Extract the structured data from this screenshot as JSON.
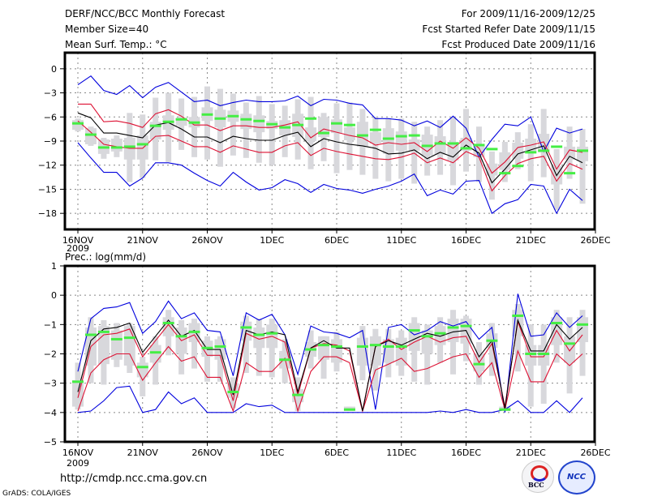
{
  "header": {
    "title": "DERF/NCC/BCC Monthly Forecast",
    "member_size": "Member Size=40",
    "variable_top": "Mean Surf. Temp.: °C",
    "period": "For 2009/11/16-2009/12/25",
    "started": "Fcst Started Refer Date 2009/11/15",
    "produced": "Fcst Produced Date 2009/11/16"
  },
  "footer": {
    "url": "http://cmdp.ncc.cma.gov.cn",
    "credit": "GrADS: COLA/IGES",
    "logos": [
      "BCC",
      "NCC"
    ]
  },
  "colors": {
    "max_min": "#0000dd",
    "spread": "#dd1133",
    "mean": "#000000",
    "median": "#44ee44",
    "box": "#d8d8dc"
  },
  "chart_data": [
    {
      "type": "line",
      "title": "Mean Surf. Temp.: °C",
      "xlabel": "",
      "ylabel": "°C",
      "x_start": "16NOV 2009",
      "x_ticks": [
        "16NOV",
        "21NOV",
        "26NOV",
        "1DEC",
        "6DEC",
        "11DEC",
        "16DEC",
        "21DEC",
        "26DEC"
      ],
      "x_tick_year": "2009",
      "ylim": [
        -20,
        2
      ],
      "y_ticks": [
        0,
        -3,
        -6,
        -9,
        -12,
        -15,
        -18
      ],
      "grid": true,
      "days": 40,
      "series": [
        {
          "name": "max",
          "color": "blue",
          "values": [
            -2.0,
            -0.9,
            -2.7,
            -3.2,
            -2.1,
            -3.6,
            -2.3,
            -1.7,
            -2.9,
            -4.1,
            -3.9,
            -4.6,
            -4.2,
            -3.9,
            -4.1,
            -4.1,
            -4.0,
            -3.4,
            -4.6,
            -3.8,
            -3.9,
            -4.3,
            -4.5,
            -6.2,
            -6.2,
            -6.4,
            -7.1,
            -6.5,
            -7.3,
            -5.9,
            -7.4,
            -11.0,
            -8.8,
            -6.9,
            -7.1,
            -6.0,
            -10.3,
            -7.4,
            -8.0,
            -7.5
          ]
        },
        {
          "name": "upper",
          "color": "red",
          "values": [
            -4.4,
            -4.4,
            -6.6,
            -6.5,
            -6.8,
            -7.3,
            -5.6,
            -5.1,
            -5.9,
            -7.0,
            -7.0,
            -7.7,
            -7.1,
            -7.1,
            -7.3,
            -7.3,
            -7.0,
            -6.6,
            -8.6,
            -7.5,
            -7.9,
            -8.3,
            -8.6,
            -9.5,
            -9.2,
            -9.4,
            -9.2,
            -10.3,
            -9.0,
            -9.9,
            -8.6,
            -9.9,
            -13.0,
            -11.6,
            -9.8,
            -9.5,
            -9.1,
            -12.5,
            -10.1,
            -10.4
          ]
        },
        {
          "name": "mean",
          "color": "black",
          "values": [
            -5.5,
            -6.1,
            -8.0,
            -8.0,
            -8.3,
            -8.6,
            -7.0,
            -6.7,
            -7.5,
            -8.5,
            -8.5,
            -9.2,
            -8.4,
            -8.7,
            -8.9,
            -8.9,
            -8.3,
            -7.9,
            -9.7,
            -8.7,
            -9.1,
            -9.4,
            -9.6,
            -9.9,
            -10.6,
            -10.5,
            -10.1,
            -11.2,
            -10.4,
            -11.0,
            -9.5,
            -10.5,
            -14.2,
            -12.5,
            -10.6,
            -10.1,
            -9.6,
            -13.3,
            -10.9,
            -11.7
          ]
        },
        {
          "name": "lower",
          "color": "red",
          "values": [
            -6.5,
            -7.9,
            -9.4,
            -9.7,
            -9.9,
            -9.9,
            -8.4,
            -8.3,
            -9.0,
            -9.7,
            -9.7,
            -10.4,
            -9.6,
            -10.0,
            -10.4,
            -10.4,
            -9.6,
            -9.2,
            -10.8,
            -9.9,
            -10.3,
            -10.6,
            -10.9,
            -11.2,
            -11.3,
            -11.0,
            -10.5,
            -11.7,
            -11.1,
            -11.7,
            -10.3,
            -11.0,
            -15.2,
            -13.3,
            -11.8,
            -11.2,
            -10.9,
            -14.0,
            -11.8,
            -12.5
          ]
        },
        {
          "name": "min",
          "color": "blue",
          "values": [
            -9.2,
            -11.1,
            -12.9,
            -12.9,
            -14.6,
            -13.6,
            -11.7,
            -11.7,
            -12.0,
            -13.0,
            -13.9,
            -14.6,
            -12.9,
            -14.1,
            -15.1,
            -14.8,
            -13.8,
            -14.3,
            -15.4,
            -14.4,
            -14.9,
            -15.1,
            -15.5,
            -15.0,
            -14.6,
            -14.0,
            -13.1,
            -15.8,
            -15.1,
            -15.6,
            -14.0,
            -13.9,
            -18.0,
            -16.8,
            -16.3,
            -14.4,
            -14.6,
            -18.0,
            -15.0,
            -16.4
          ]
        },
        {
          "name": "median",
          "color": "green",
          "values": [
            -6.8,
            -8.2,
            -9.8,
            -9.8,
            -9.7,
            -9.4,
            -7.1,
            -6.6,
            -6.3,
            -6.7,
            -5.7,
            -6.2,
            -5.9,
            -6.3,
            -6.5,
            -6.9,
            -7.3,
            -7.0,
            -6.2,
            -8.0,
            -6.8,
            -7.0,
            -8.3,
            -7.6,
            -8.7,
            -8.4,
            -8.3,
            -9.6,
            -9.3,
            -9.3,
            -9.9,
            -9.5,
            -10.0,
            -13.0,
            -12.1,
            -10.4,
            -10.2,
            -9.7,
            -13.0,
            -10.2
          ]
        },
        {
          "name": "box_q1",
          "color": "gray",
          "values": [
            -6.4,
            -7.4,
            -8.8,
            -8.7,
            -8.6,
            -8.3,
            -6.6,
            -5.8,
            -6.1,
            -6.0,
            -4.8,
            -5.1,
            -5.2,
            -5.6,
            -5.8,
            -6.5,
            -6.4,
            -5.6,
            -7.3,
            -6.0,
            -6.3,
            -7.3,
            -6.6,
            -7.9,
            -7.4,
            -7.8,
            -8.8,
            -8.2,
            -8.4,
            -9.1,
            -8.6,
            -9.5,
            -11.8,
            -10.4,
            -9.2,
            -8.7,
            -8.1,
            -12.1,
            -9.7,
            -9.7
          ]
        },
        {
          "name": "box_q3",
          "color": "gray",
          "values": [
            -7.6,
            -9.4,
            -10.6,
            -10.3,
            -11.3,
            -11.3,
            -8.8,
            -7.6,
            -7.1,
            -7.3,
            -6.5,
            -7.3,
            -6.6,
            -7.5,
            -7.9,
            -7.5,
            -8.3,
            -8.5,
            -9.0,
            -8.5,
            -8.0,
            -8.9,
            -9.7,
            -9.3,
            -10.6,
            -10.2,
            -10.2,
            -10.8,
            -10.7,
            -11.4,
            -10.2,
            -11.0,
            -13.3,
            -12.6,
            -11.2,
            -10.5,
            -10.4,
            -14.4,
            -11.3,
            -11.5
          ]
        },
        {
          "name": "whisker_hi",
          "color": "gray",
          "values": [
            -6.2,
            -7.2,
            -8.6,
            -8.3,
            -5.5,
            -5.7,
            -3.6,
            -3.0,
            -3.7,
            -3.5,
            -2.2,
            -2.5,
            -3.1,
            -4.2,
            -3.4,
            -4.4,
            -4.6,
            -3.8,
            -3.5,
            -5.5,
            -4.3,
            -4.2,
            -5.0,
            -6.0,
            -6.2,
            -6.2,
            -6.6,
            -7.2,
            -6.4,
            -6.0,
            -5.0,
            -7.2,
            -10.3,
            -9.1,
            -7.9,
            -6.9,
            -5.0,
            -10.0,
            -7.2,
            -7.5
          ]
        },
        {
          "name": "whisker_lo",
          "color": "gray",
          "values": [
            -7.8,
            -9.6,
            -11.2,
            -11.0,
            -14.1,
            -13.6,
            -11.4,
            -11.6,
            -10.1,
            -11.0,
            -11.3,
            -12.2,
            -10.8,
            -11.1,
            -11.7,
            -12.0,
            -11.0,
            -11.3,
            -12.5,
            -11.5,
            -13.0,
            -12.6,
            -13.2,
            -13.7,
            -14.0,
            -13.7,
            -14.3,
            -13.3,
            -13.2,
            -14.5,
            -12.8,
            -14.1,
            -16.3,
            -14.1,
            -12.5,
            -14.0,
            -13.5,
            -17.6,
            -13.7,
            -16.8
          ]
        }
      ]
    },
    {
      "type": "line",
      "title": "Prec.: log(mm/d)",
      "xlabel": "",
      "ylabel": "log(mm/d)",
      "x_start": "16NOV 2009",
      "x_ticks": [
        "16NOV",
        "21NOV",
        "26NOV",
        "1DEC",
        "6DEC",
        "11DEC",
        "16DEC",
        "21DEC",
        "26DEC"
      ],
      "x_tick_year": "2009",
      "ylim": [
        -5,
        1
      ],
      "y_ticks": [
        1,
        0,
        -1,
        -2,
        -3,
        -4,
        -5
      ],
      "grid": true,
      "days": 40,
      "series": [
        {
          "name": "max",
          "color": "blue",
          "values": [
            -2.6,
            -0.8,
            -0.45,
            -0.4,
            -0.25,
            -1.3,
            -0.9,
            -0.2,
            -0.8,
            -0.6,
            -1.2,
            -1.25,
            -2.75,
            -0.6,
            -0.85,
            -0.65,
            -1.35,
            -2.7,
            -1.05,
            -1.25,
            -1.3,
            -1.45,
            -1.2,
            -3.9,
            -1.1,
            -1.0,
            -1.35,
            -1.2,
            -0.9,
            -1.05,
            -0.9,
            -1.5,
            -1.1,
            -4.0,
            0.05,
            -1.4,
            -1.35,
            -0.6,
            -1.1,
            -0.7
          ]
        },
        {
          "name": "upper",
          "color": "red",
          "values": [
            -3.5,
            -1.75,
            -1.35,
            -1.3,
            -1.15,
            -2.1,
            -1.55,
            -1.0,
            -1.55,
            -1.35,
            -2.05,
            -2.05,
            -3.6,
            -1.3,
            -1.5,
            -1.4,
            -1.6,
            -3.4,
            -1.8,
            -1.65,
            -1.7,
            -1.9,
            -3.95,
            -1.75,
            -1.5,
            -1.85,
            -1.6,
            -1.4,
            -1.6,
            -1.45,
            -1.4,
            -2.3,
            -1.65,
            -3.8,
            -0.9,
            -2.1,
            -2.1,
            -1.2,
            -1.9,
            -1.35
          ]
        },
        {
          "name": "mean",
          "color": "black",
          "values": [
            -3.3,
            -1.55,
            -1.15,
            -1.1,
            -0.95,
            -1.95,
            -1.4,
            -0.85,
            -1.4,
            -1.2,
            -1.85,
            -1.85,
            -3.4,
            -1.2,
            -1.35,
            -1.25,
            -1.35,
            -3.3,
            -1.8,
            -1.55,
            -1.8,
            -1.8,
            -3.95,
            -1.75,
            -1.55,
            -1.7,
            -1.5,
            -1.3,
            -1.4,
            -1.25,
            -1.2,
            -2.1,
            -1.55,
            -3.85,
            -0.85,
            -1.9,
            -1.9,
            -1.0,
            -1.5,
            -1.1
          ]
        },
        {
          "name": "lower",
          "color": "red",
          "values": [
            -3.95,
            -2.65,
            -2.2,
            -2.0,
            -2.0,
            -2.9,
            -2.3,
            -1.75,
            -2.25,
            -2.1,
            -2.8,
            -2.8,
            -3.95,
            -2.3,
            -2.6,
            -2.6,
            -2.15,
            -3.95,
            -2.6,
            -2.1,
            -2.1,
            -2.3,
            -3.95,
            -2.55,
            -2.35,
            -2.15,
            -2.6,
            -2.5,
            -2.3,
            -2.1,
            -2.0,
            -2.8,
            -2.3,
            -3.9,
            -1.9,
            -2.95,
            -2.95,
            -2.0,
            -2.4,
            -2.0
          ]
        },
        {
          "name": "min",
          "color": "blue",
          "values": [
            -4.0,
            -3.95,
            -3.6,
            -3.15,
            -3.1,
            -4.0,
            -3.9,
            -3.3,
            -3.7,
            -3.5,
            -4.0,
            -4.0,
            -4.0,
            -3.7,
            -3.8,
            -3.75,
            -4.0,
            -4.0,
            -4.0,
            -4.0,
            -4.0,
            -4.0,
            -4.0,
            -4.0,
            -4.0,
            -4.0,
            -4.0,
            -4.0,
            -3.95,
            -4.0,
            -3.9,
            -4.0,
            -4.0,
            -3.9,
            -3.6,
            -4.0,
            -4.0,
            -3.6,
            -4.0,
            -3.5
          ]
        },
        {
          "name": "median",
          "color": "green",
          "values": [
            -2.95,
            -1.35,
            -1.25,
            -1.5,
            -1.45,
            -2.45,
            -1.95,
            -0.95,
            -1.4,
            -1.25,
            -1.8,
            -1.75,
            -3.3,
            -1.1,
            -1.35,
            -1.3,
            -2.2,
            -3.4,
            -1.85,
            -1.7,
            -1.75,
            -3.9,
            -1.75,
            -1.7,
            -1.75,
            -1.75,
            -1.2,
            -1.4,
            -1.3,
            -1.1,
            -1.05,
            -2.35,
            -1.55,
            -3.9,
            -0.7,
            -2.0,
            -2.0,
            -0.95,
            -1.65,
            -1.0
          ]
        },
        {
          "name": "box_q1",
          "color": "gray",
          "values": [
            -2.9,
            -1.1,
            -1.05,
            -1.2,
            -1.05,
            -2.3,
            -1.7,
            -0.75,
            -1.1,
            -0.95,
            -1.55,
            -1.5,
            -3.0,
            -0.9,
            -1.1,
            -1.0,
            -1.9,
            -3.2,
            -1.6,
            -1.4,
            -1.5,
            -3.8,
            -1.45,
            -1.4,
            -1.5,
            -1.45,
            -0.95,
            -1.2,
            -1.05,
            -0.8,
            -0.8,
            -2.0,
            -1.3,
            -3.8,
            -0.5,
            -1.7,
            -1.7,
            -0.75,
            -1.4,
            -0.75
          ]
        },
        {
          "name": "box_q3",
          "color": "gray",
          "values": [
            -3.8,
            -2.4,
            -2.35,
            -2.2,
            -2.4,
            -2.8,
            -2.3,
            -1.4,
            -2.0,
            -1.6,
            -2.1,
            -2.2,
            -3.5,
            -1.55,
            -1.8,
            -1.8,
            -2.5,
            -3.65,
            -2.1,
            -2.2,
            -2.3,
            -3.95,
            -2.4,
            -2.4,
            -2.3,
            -2.4,
            -1.9,
            -2.0,
            -1.7,
            -1.6,
            -1.65,
            -2.6,
            -1.8,
            -3.95,
            -1.4,
            -2.4,
            -2.4,
            -1.7,
            -2.3,
            -1.6
          ]
        },
        {
          "name": "whisker_hi",
          "color": "gray",
          "values": [
            -2.3,
            -0.75,
            -0.85,
            -0.95,
            -0.95,
            -2.1,
            -1.4,
            -0.5,
            -0.85,
            -0.8,
            -1.4,
            -1.4,
            -2.8,
            -0.7,
            -0.8,
            -0.8,
            -1.5,
            -2.8,
            -1.2,
            -1.4,
            -1.25,
            -3.8,
            -1.05,
            -1.15,
            -1.15,
            -1.2,
            -0.75,
            -1.0,
            -0.75,
            -0.5,
            -0.7,
            -1.6,
            -0.95,
            -3.8,
            -0.3,
            -1.0,
            -1.0,
            -0.5,
            -0.75,
            -0.5
          ]
        },
        {
          "name": "whisker_lo",
          "color": "gray",
          "values": [
            -3.9,
            -3.0,
            -3.05,
            -2.45,
            -2.65,
            -3.45,
            -3.05,
            -2.05,
            -2.7,
            -2.5,
            -2.95,
            -2.95,
            -3.85,
            -2.65,
            -2.75,
            -2.8,
            -3.0,
            -3.95,
            -2.5,
            -2.85,
            -2.6,
            -3.95,
            -2.9,
            -3.25,
            -2.8,
            -2.75,
            -2.95,
            -3.05,
            -2.3,
            -2.7,
            -2.25,
            -3.05,
            -2.75,
            -3.95,
            -2.6,
            -3.8,
            -3.7,
            -2.3,
            -3.35,
            -2.75
          ]
        }
      ]
    }
  ]
}
